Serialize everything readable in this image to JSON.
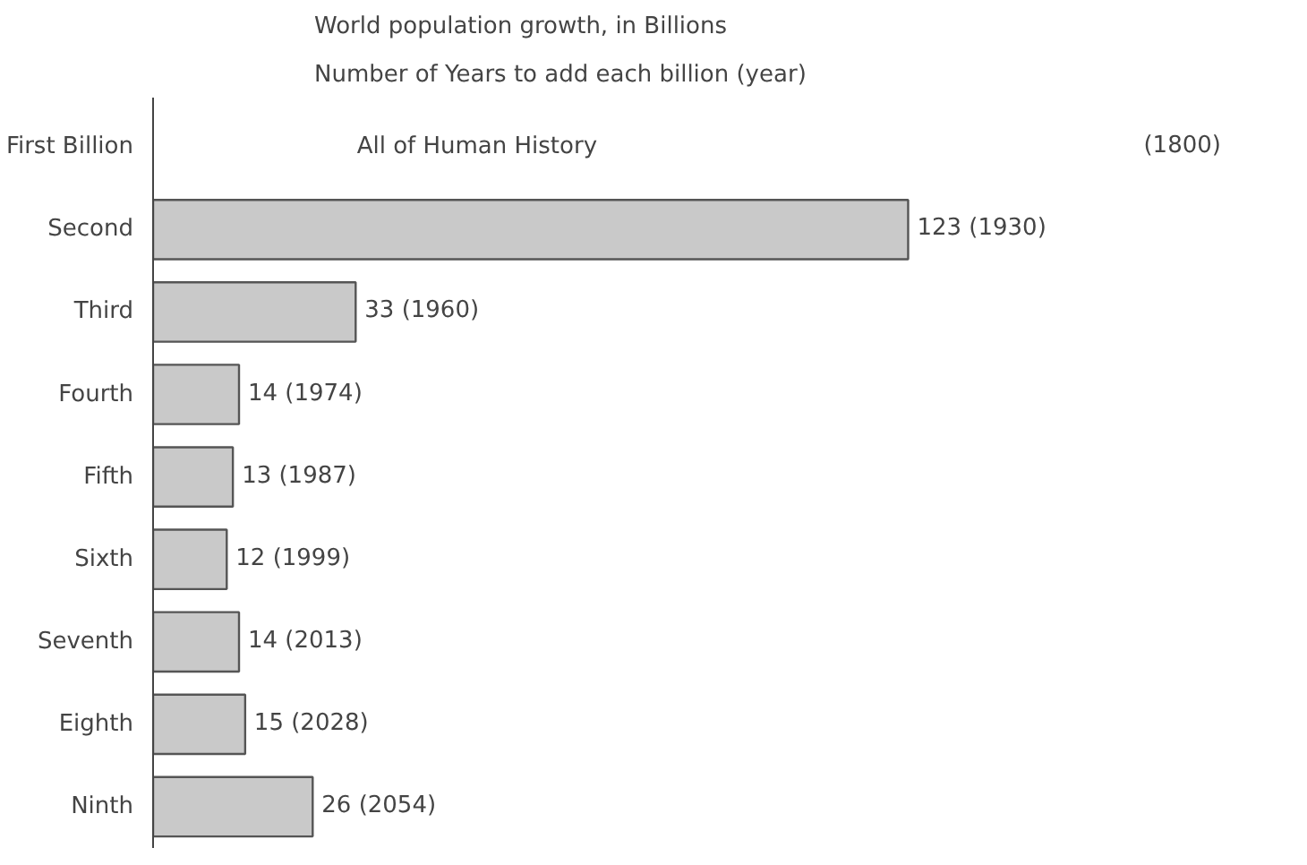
{
  "chart_data": {
    "type": "bar",
    "orientation": "horizontal",
    "title": "World population growth, in Billions",
    "subtitle": "Number of Years to add each billion (year)",
    "categories": [
      "First Billion",
      "Second",
      "Third",
      "Fourth",
      "Fifth",
      "Sixth",
      "Seventh",
      "Eighth",
      "Ninth"
    ],
    "values": [
      null,
      123,
      33,
      14,
      13,
      12,
      14,
      15,
      26
    ],
    "value_labels": [
      "(1800)",
      "123 (1930)",
      "33 (1960)",
      "14 (1974)",
      "13 (1987)",
      "12 (1999)",
      "14 (2013)",
      "15 (2028)",
      "26 (2054)"
    ],
    "color": "#c9c9c9",
    "annotations": [
      "All of Human History"
    ]
  }
}
